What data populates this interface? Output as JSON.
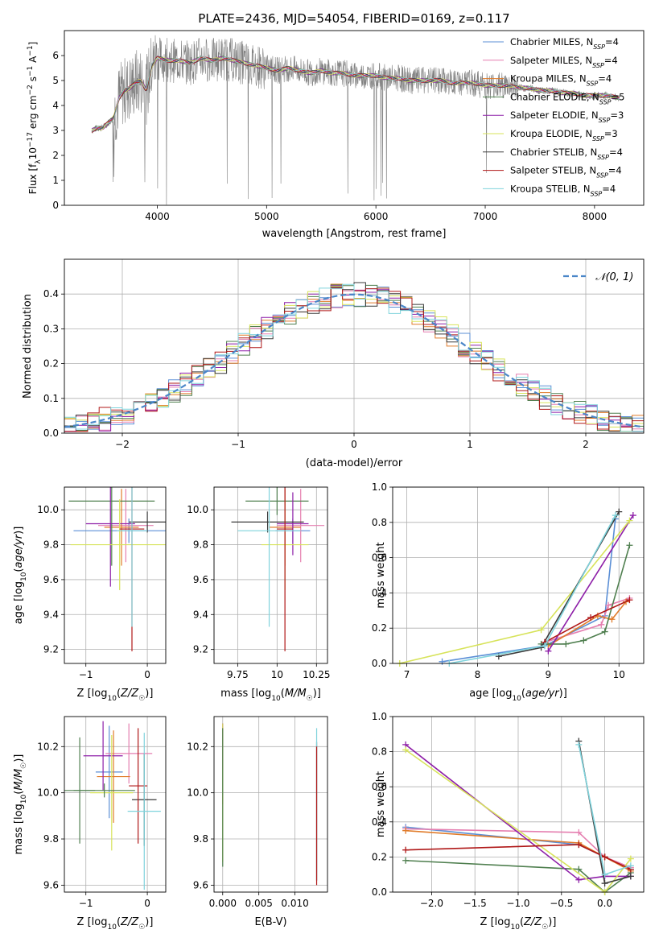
{
  "figure_title": "PLATE=2436, MJD=54054, FIBERID=0169, z=0.117",
  "colors": {
    "Chabrier MILES": "#5b8fd6",
    "Salpeter MILES": "#e57fb0",
    "Kroupa MILES": "#e07b2a",
    "Chabrier ELODIE": "#4f7f4f",
    "Salpeter ELODIE": "#8e1fa8",
    "Kroupa ELODIE": "#d7e35a",
    "Chabrier STELIB": "#3a3a3a",
    "Salpeter STELIB": "#b01818",
    "Kroupa STELIB": "#7fd3dc",
    "data": "#808080",
    "normal": "#4a86c8"
  },
  "chart_data": [
    {
      "id": "spectrum",
      "type": "line",
      "xlabel": "wavelength [Angstrom, rest frame]",
      "ylabel": "Flux [f_λ 10⁻¹⁷ erg cm⁻² s⁻¹ A⁻¹]",
      "xlim": [
        3150,
        8450
      ],
      "ylim": [
        0,
        7
      ],
      "xticks": [
        4000,
        5000,
        6000,
        7000,
        8000
      ],
      "yticks": [
        0,
        1,
        2,
        3,
        4,
        5,
        6
      ],
      "grid": false,
      "legend_position": "top-right",
      "legend": [
        {
          "name": "Chabrier MILES",
          "nssp": "4"
        },
        {
          "name": "Salpeter MILES",
          "nssp": "4"
        },
        {
          "name": "Kroupa MILES",
          "nssp": "4"
        },
        {
          "name": "Chabrier ELODIE",
          "nssp": "5"
        },
        {
          "name": "Salpeter ELODIE",
          "nssp": "3"
        },
        {
          "name": "Kroupa ELODIE",
          "nssp": "3"
        },
        {
          "name": "Chabrier STELIB",
          "nssp": "4"
        },
        {
          "name": "Salpeter STELIB",
          "nssp": "4"
        },
        {
          "name": "Kroupa STELIB",
          "nssp": "4"
        }
      ],
      "data_curve": {
        "x": [
          3400,
          3450,
          3500,
          3550,
          3600,
          3650,
          3700,
          3750,
          3800,
          3850,
          3900,
          3950,
          4000,
          4100,
          4200,
          4300,
          4400,
          4500,
          4600,
          4700,
          4800,
          4900,
          5000,
          5100,
          5200,
          5300,
          5400,
          5500,
          5600,
          5700,
          5800,
          5900,
          6000,
          6100,
          6200,
          6300,
          6400,
          6500,
          6600,
          6700,
          6800,
          6900,
          7000,
          7100,
          7200,
          7300,
          7400,
          7500,
          7600,
          7700,
          7800,
          7900,
          8000,
          8100,
          8230
        ],
        "y": [
          3.0,
          3.1,
          3.1,
          3.3,
          3.5,
          4.3,
          4.6,
          4.7,
          4.9,
          5.0,
          4.6,
          5.6,
          5.9,
          5.8,
          5.8,
          5.7,
          5.9,
          5.8,
          5.9,
          5.8,
          5.7,
          5.6,
          5.5,
          5.4,
          5.5,
          5.4,
          5.3,
          5.4,
          5.3,
          5.3,
          5.2,
          5.2,
          5.2,
          5.1,
          5.1,
          5.0,
          5.0,
          5.0,
          5.0,
          4.9,
          4.9,
          4.9,
          4.8,
          4.8,
          4.8,
          4.7,
          4.7,
          4.6,
          4.6,
          4.5,
          4.5,
          4.4,
          4.4,
          4.4,
          4.3
        ]
      }
    },
    {
      "id": "residuals",
      "type": "line",
      "xlabel": "(data-model)/error",
      "ylabel": "Normed distribution",
      "xlim": [
        -2.5,
        2.5
      ],
      "ylim": [
        0,
        0.5
      ],
      "xticks": [
        -2,
        -1,
        0,
        1,
        2
      ],
      "yticks": [
        0.0,
        0.1,
        0.2,
        0.3,
        0.4
      ],
      "grid": true,
      "legend_position": "top-right",
      "normal_curve_label": "𝒩(0, 1)",
      "bin_width": 0.1
    },
    {
      "id": "age_vs_Z",
      "type": "scatter",
      "xlabel": "Z [log₁₀(Z/Z☉)]",
      "ylabel": "age  [log₁₀(age/yr)]",
      "xlim": [
        -1.35,
        0.3
      ],
      "ylim": [
        9.12,
        10.13
      ],
      "xticks": [
        -1,
        0
      ],
      "yticks": [
        9.2,
        9.4,
        9.6,
        9.8,
        10.0
      ],
      "grid": true,
      "points": [
        {
          "series": "Chabrier MILES",
          "x": -0.3,
          "xerr": 0.9,
          "y": 9.88,
          "yerr": 0.07
        },
        {
          "series": "Salpeter MILES",
          "x": -0.35,
          "xerr": 0.45,
          "y": 9.91,
          "yerr": 0.21
        },
        {
          "series": "Kroupa MILES",
          "x": -0.42,
          "xerr": 0.28,
          "y": 9.9,
          "yerr": 0.22
        },
        {
          "series": "Chabrier ELODIE",
          "x": -0.58,
          "xerr": 0.7,
          "y": 10.05,
          "yerr": 0.37
        },
        {
          "series": "Salpeter ELODIE",
          "x": -0.6,
          "xerr": 0.4,
          "y": 9.92,
          "yerr": 0.36
        },
        {
          "series": "Kroupa ELODIE",
          "x": -0.45,
          "xerr": 0.8,
          "y": 9.8,
          "yerr": 0.26
        },
        {
          "series": "Chabrier STELIB",
          "x": 0.0,
          "xerr": 0.3,
          "y": 9.93,
          "yerr": 0.06
        },
        {
          "series": "Salpeter STELIB",
          "x": -0.25,
          "xerr": 0.2,
          "y": 9.89,
          "yerr": 0.7
        },
        {
          "series": "Kroupa STELIB",
          "x": -0.25,
          "xerr": 0.25,
          "y": 9.88,
          "yerr": 0.55
        }
      ]
    },
    {
      "id": "age_vs_mass",
      "type": "scatter",
      "xlabel": "mass [log₁₀(M/M☉)]",
      "ylabel": "",
      "xlim": [
        9.6,
        10.32
      ],
      "ylim": [
        9.12,
        10.13
      ],
      "xticks": [
        9.75,
        10.0,
        10.25
      ],
      "yticks": [
        9.2,
        9.4,
        9.6,
        9.8,
        10.0
      ],
      "grid": true,
      "points": [
        {
          "series": "Chabrier MILES",
          "x": 10.1,
          "xerr": 0.11,
          "y": 9.88,
          "yerr": 0.07
        },
        {
          "series": "Salpeter MILES",
          "x": 10.15,
          "xerr": 0.15,
          "y": 9.91,
          "yerr": 0.21
        },
        {
          "series": "Kroupa MILES",
          "x": 10.05,
          "xerr": 0.1,
          "y": 9.9,
          "yerr": 0.22
        },
        {
          "series": "Chabrier ELODIE",
          "x": 10.0,
          "xerr": 0.2,
          "y": 10.05,
          "yerr": 0.08
        },
        {
          "series": "Salpeter ELODIE",
          "x": 10.1,
          "xerr": 0.1,
          "y": 9.92,
          "yerr": 0.18
        },
        {
          "series": "Kroupa ELODIE",
          "x": 10.05,
          "xerr": 0.15,
          "y": 9.8,
          "yerr": 0.26
        },
        {
          "series": "Chabrier STELIB",
          "x": 9.94,
          "xerr": 0.23,
          "y": 9.93,
          "yerr": 0.06
        },
        {
          "series": "Salpeter STELIB",
          "x": 10.05,
          "xerr": 0.05,
          "y": 9.89,
          "yerr": 0.7
        },
        {
          "series": "Kroupa STELIB",
          "x": 9.95,
          "xerr": 0.2,
          "y": 9.88,
          "yerr": 0.55
        }
      ]
    },
    {
      "id": "weight_vs_age",
      "type": "line",
      "xlabel": "age  [log₁₀(age/yr)]",
      "ylabel": "mass weight",
      "xlim": [
        6.8,
        10.35
      ],
      "ylim": [
        0,
        1
      ],
      "xticks": [
        7,
        8,
        9,
        10
      ],
      "yticks": [
        0.0,
        0.2,
        0.4,
        0.6,
        0.8,
        1.0
      ],
      "grid": true,
      "series": [
        {
          "name": "Chabrier MILES",
          "x": [
            7.5,
            8.95,
            9.8,
            9.95
          ],
          "y": [
            0.01,
            0.1,
            0.27,
            0.82
          ]
        },
        {
          "name": "Salpeter MILES",
          "x": [
            8.95,
            9.75,
            9.85,
            10.15
          ],
          "y": [
            0.12,
            0.22,
            0.33,
            0.37
          ]
        },
        {
          "name": "Kroupa MILES",
          "x": [
            9.0,
            9.7,
            9.9,
            10.1
          ],
          "y": [
            0.1,
            0.27,
            0.25,
            0.35
          ]
        },
        {
          "name": "Chabrier ELODIE",
          "x": [
            8.9,
            9.25,
            9.5,
            9.8,
            10.15
          ],
          "y": [
            0.11,
            0.11,
            0.13,
            0.18,
            0.67
          ]
        },
        {
          "name": "Salpeter ELODIE",
          "x": [
            9.0,
            10.2
          ],
          "y": [
            0.07,
            0.84
          ]
        },
        {
          "name": "Kroupa ELODIE",
          "x": [
            6.9,
            8.9,
            10.15
          ],
          "y": [
            0.0,
            0.19,
            0.81
          ]
        },
        {
          "name": "Chabrier STELIB",
          "x": [
            8.3,
            8.9,
            10.0
          ],
          "y": [
            0.04,
            0.09,
            0.86
          ]
        },
        {
          "name": "Salpeter STELIB",
          "x": [
            8.95,
            9.6,
            10.15
          ],
          "y": [
            0.12,
            0.26,
            0.36
          ]
        },
        {
          "name": "Kroupa STELIB",
          "x": [
            7.6,
            8.95,
            9.95
          ],
          "y": [
            0.0,
            0.1,
            0.84
          ]
        }
      ]
    },
    {
      "id": "mass_vs_Z",
      "type": "scatter",
      "xlabel": "Z [log₁₀(Z/Z☉)]",
      "ylabel": "mass [log₁₀(M/M☉)]",
      "xlim": [
        -1.35,
        0.3
      ],
      "ylim": [
        9.57,
        10.33
      ],
      "xticks": [
        -1,
        0
      ],
      "yticks": [
        9.6,
        9.8,
        10.0,
        10.2
      ],
      "grid": true,
      "points": [
        {
          "series": "Chabrier MILES",
          "x": -0.62,
          "xerr": 0.22,
          "y": 10.09,
          "yerr": 0.2
        },
        {
          "series": "Salpeter MILES",
          "x": -0.3,
          "xerr": 0.38,
          "y": 10.17,
          "yerr": 0.13
        },
        {
          "series": "Kroupa MILES",
          "x": -0.55,
          "xerr": 0.27,
          "y": 10.07,
          "yerr": 0.2
        },
        {
          "series": "Chabrier ELODIE",
          "x": -1.1,
          "xerr": 0.25,
          "y": 10.01,
          "yerr": 0.23
        },
        {
          "series": "Salpeter ELODIE",
          "x": -0.72,
          "xerr": 0.32,
          "y": 10.16,
          "yerr": 0.15
        },
        {
          "series": "Kroupa ELODIE",
          "x": -0.58,
          "xerr": 0.35,
          "y": 10.0,
          "yerr": 0.25
        },
        {
          "series": "Chabrier STELIB",
          "x": -0.05,
          "xerr": 0.2,
          "y": 9.97,
          "yerr": 0.2
        },
        {
          "series": "Salpeter STELIB",
          "x": -0.15,
          "xerr": 0.15,
          "y": 10.03,
          "yerr": 0.25
        },
        {
          "series": "Kroupa STELIB",
          "x": -0.05,
          "xerr": 0.27,
          "y": 9.92,
          "yerr": 0.34
        },
        {
          "series": "Chabrier ELODIE",
          "x": -0.7,
          "xerr": 0.5,
          "y": 10.01,
          "yerr": 0.03
        }
      ]
    },
    {
      "id": "mass_vs_ebv",
      "type": "scatter",
      "xlabel": "E(B-V)",
      "ylabel": "",
      "xlim": [
        -0.0012,
        0.0145
      ],
      "ylim": [
        9.57,
        10.33
      ],
      "xticks": [
        0.0,
        0.005,
        0.01
      ],
      "xticklabels": [
        "0.000",
        "0.005",
        "0.010"
      ],
      "yticks": [
        9.6,
        9.8,
        10.0,
        10.2
      ],
      "grid": true,
      "points": [
        {
          "series": "Salpeter MILES",
          "x": 0.0,
          "y": 10.15,
          "yerr": 0.15
        },
        {
          "series": "Kroupa MILES",
          "x": 0.0,
          "y": 10.1,
          "yerr": 0.15
        },
        {
          "series": "Chabrier MILES",
          "x": 0.0,
          "y": 10.12,
          "yerr": 0.13
        },
        {
          "series": "Salpeter ELODIE",
          "x": 0.0,
          "y": 10.2,
          "yerr": 0.1
        },
        {
          "series": "Kroupa ELODIE",
          "x": 0.0,
          "y": 10.0,
          "yerr": 0.3
        },
        {
          "series": "Chabrier ELODIE",
          "x": 0.0,
          "y": 9.98,
          "yerr": 0.3
        },
        {
          "series": "Chabrier STELIB",
          "x": 0.013,
          "y": 9.92,
          "yerr": 0.3
        },
        {
          "series": "Kroupa STELIB",
          "x": 0.013,
          "y": 9.95,
          "yerr": 0.33
        },
        {
          "series": "Salpeter STELIB",
          "x": 0.013,
          "y": 9.9,
          "yerr": 0.3
        }
      ]
    },
    {
      "id": "weight_vs_Z",
      "type": "line",
      "xlabel": "Z [log₁₀(Z/Z☉)]",
      "ylabel": "mass weight",
      "xlim": [
        -2.45,
        0.45
      ],
      "ylim": [
        0,
        1
      ],
      "xticks": [
        -2.0,
        -1.5,
        -1.0,
        -0.5,
        0.0
      ],
      "xticklabels": [
        "−2.0",
        "−1.5",
        "−1.0",
        "−0.5",
        "0.0"
      ],
      "yticks": [
        0.0,
        0.2,
        0.4,
        0.6,
        0.8,
        1.0
      ],
      "grid": true,
      "series": [
        {
          "name": "Chabrier MILES",
          "x": [
            -2.3,
            -0.3,
            0.0,
            0.3
          ],
          "y": [
            0.37,
            0.27,
            0.2,
            0.13
          ]
        },
        {
          "name": "Salpeter MILES",
          "x": [
            -2.3,
            -0.3,
            0.0,
            0.3
          ],
          "y": [
            0.36,
            0.34,
            0.2,
            0.14
          ]
        },
        {
          "name": "Kroupa MILES",
          "x": [
            -2.3,
            -0.3,
            0.0,
            0.3
          ],
          "y": [
            0.35,
            0.28,
            0.2,
            0.12
          ]
        },
        {
          "name": "Chabrier ELODIE",
          "x": [
            -2.3,
            -0.3,
            0.0,
            0.3
          ],
          "y": [
            0.18,
            0.13,
            0.0,
            0.11
          ]
        },
        {
          "name": "Salpeter ELODIE",
          "x": [
            -2.3,
            -0.3,
            0.0,
            0.3
          ],
          "y": [
            0.84,
            0.07,
            0.09,
            0.09
          ]
        },
        {
          "name": "Kroupa ELODIE",
          "x": [
            -2.3,
            0.0,
            0.3
          ],
          "y": [
            0.81,
            0.0,
            0.19
          ]
        },
        {
          "name": "Chabrier STELIB",
          "x": [
            -0.3,
            0.0,
            0.3
          ],
          "y": [
            0.86,
            0.05,
            0.09
          ]
        },
        {
          "name": "Salpeter STELIB",
          "x": [
            -2.3,
            -0.3,
            0.0,
            0.3
          ],
          "y": [
            0.24,
            0.27,
            0.2,
            0.13
          ]
        },
        {
          "name": "Kroupa STELIB",
          "x": [
            -0.3,
            0.0,
            0.3
          ],
          "y": [
            0.84,
            0.1,
            0.15
          ]
        }
      ]
    }
  ]
}
